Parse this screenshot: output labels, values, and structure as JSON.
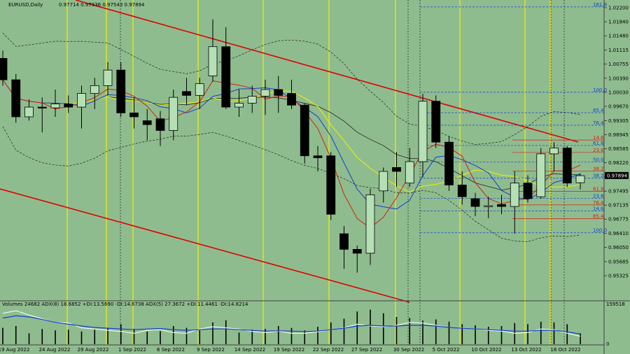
{
  "header": {
    "symbol": "EURUSD,Daily",
    "ohlc": "0.97714 0.97936 0.97543 0.97894"
  },
  "indicator": {
    "title": "Volumes 24682 ADX(8) 18.6852 +DI:13.5690 -DI:14.6738 ADX(5) 27.3672 +DI:11.4461 -DI:14.8214",
    "max_label": "159518",
    "min_label": "0"
  },
  "colors": {
    "bg": "#8fbc8f",
    "up": "#b5e0b5",
    "down": "#000000",
    "channel": "#e00000",
    "vline": "#f0f000",
    "blue": "#1040d0",
    "red": "#d02010"
  },
  "chart_data": {
    "type": "candlestick",
    "price_ticks": [
      "1.02200",
      "1.01840",
      "1.01480",
      "1.01115",
      "1.00755",
      "1.00390",
      "1.00030",
      "0.99670",
      "0.99305",
      "0.98945",
      "0.98585",
      "0.98220",
      "0.97860",
      "0.97495",
      "0.97135",
      "0.96775",
      "0.96410",
      "0.96050",
      "0.95685",
      "0.95325"
    ],
    "current_price": "0.97894",
    "date_labels": [
      "19 Aug 2022",
      "24 Aug 2022",
      "29 Aug 2022",
      "1 Sep 2022",
      "6 Sep 2022",
      "9 Sep 2022",
      "14 Sep 2022",
      "19 Sep 2022",
      "22 Sep 2022",
      "27 Sep 2022",
      "30 Sep 2022",
      "5 Oct 2022",
      "10 Oct 2022",
      "13 Oct 2022",
      "18 Oct 2022"
    ],
    "candles": [
      {
        "o": 1.009,
        "h": 1.011,
        "l": 1.002,
        "c": 1.0035
      },
      {
        "o": 1.0035,
        "h": 1.005,
        "l": 0.9925,
        "c": 0.994
      },
      {
        "o": 0.994,
        "h": 0.9985,
        "l": 0.993,
        "c": 0.9965
      },
      {
        "o": 0.9965,
        "h": 0.999,
        "l": 0.99,
        "c": 0.9963
      },
      {
        "o": 0.9963,
        "h": 1.001,
        "l": 0.994,
        "c": 0.9973
      },
      {
        "o": 0.9973,
        "h": 0.9995,
        "l": 0.995,
        "c": 0.9965
      },
      {
        "o": 0.9965,
        "h": 1.002,
        "l": 0.991,
        "c": 1.0
      },
      {
        "o": 1.0,
        "h": 1.004,
        "l": 0.996,
        "c": 1.002
      },
      {
        "o": 1.002,
        "h": 1.008,
        "l": 0.9995,
        "c": 1.006
      },
      {
        "o": 1.006,
        "h": 1.008,
        "l": 0.994,
        "c": 0.995
      },
      {
        "o": 0.995,
        "h": 0.999,
        "l": 0.991,
        "c": 0.994
      },
      {
        "o": 0.993,
        "h": 0.996,
        "l": 0.988,
        "c": 0.992
      },
      {
        "o": 0.9935,
        "h": 0.9955,
        "l": 0.9865,
        "c": 0.9905
      },
      {
        "o": 0.9905,
        "h": 1.001,
        "l": 0.988,
        "c": 0.999
      },
      {
        "o": 1.0005,
        "h": 1.004,
        "l": 0.997,
        "c": 0.9995
      },
      {
        "o": 0.9995,
        "h": 1.004,
        "l": 0.996,
        "c": 1.0025
      },
      {
        "o": 1.0045,
        "h": 1.019,
        "l": 1.003,
        "c": 1.012
      },
      {
        "o": 1.012,
        "h": 1.017,
        "l": 0.996,
        "c": 0.9965
      },
      {
        "o": 0.9965,
        "h": 1.001,
        "l": 0.994,
        "c": 0.9975
      },
      {
        "o": 0.9975,
        "h": 1.002,
        "l": 0.995,
        "c": 0.9993
      },
      {
        "o": 0.9993,
        "h": 1.0035,
        "l": 0.9945,
        "c": 1.001
      },
      {
        "o": 1.001,
        "h": 1.0045,
        "l": 0.995,
        "c": 0.9995
      },
      {
        "o": 1.0,
        "h": 1.0035,
        "l": 0.996,
        "c": 0.997
      },
      {
        "o": 0.997,
        "h": 0.9975,
        "l": 0.982,
        "c": 0.984
      },
      {
        "o": 0.984,
        "h": 0.9865,
        "l": 0.98,
        "c": 0.9835
      },
      {
        "o": 0.984,
        "h": 0.985,
        "l": 0.9675,
        "c": 0.969
      },
      {
        "o": 0.964,
        "h": 0.966,
        "l": 0.955,
        "c": 0.96
      },
      {
        "o": 0.96,
        "h": 0.961,
        "l": 0.954,
        "c": 0.959
      },
      {
        "o": 0.959,
        "h": 0.9755,
        "l": 0.956,
        "c": 0.974
      },
      {
        "o": 0.975,
        "h": 0.981,
        "l": 0.972,
        "c": 0.98
      },
      {
        "o": 0.981,
        "h": 0.985,
        "l": 0.976,
        "c": 0.98
      },
      {
        "o": 0.977,
        "h": 0.986,
        "l": 0.976,
        "c": 0.9825
      },
      {
        "o": 0.9825,
        "h": 0.9999,
        "l": 0.9785,
        "c": 0.998
      },
      {
        "o": 0.998,
        "h": 0.9995,
        "l": 0.986,
        "c": 0.9875
      },
      {
        "o": 0.9875,
        "h": 0.989,
        "l": 0.975,
        "c": 0.9765
      },
      {
        "o": 0.9765,
        "h": 0.98,
        "l": 0.9715,
        "c": 0.9735
      },
      {
        "o": 0.973,
        "h": 0.9745,
        "l": 0.9685,
        "c": 0.971
      },
      {
        "o": 0.971,
        "h": 0.9735,
        "l": 0.968,
        "c": 0.9712
      },
      {
        "o": 0.9715,
        "h": 0.974,
        "l": 0.969,
        "c": 0.971
      },
      {
        "o": 0.971,
        "h": 0.98,
        "l": 0.964,
        "c": 0.977
      },
      {
        "o": 0.977,
        "h": 0.979,
        "l": 0.972,
        "c": 0.973
      },
      {
        "o": 0.9735,
        "h": 0.986,
        "l": 0.973,
        "c": 0.9845
      },
      {
        "o": 0.9845,
        "h": 0.9875,
        "l": 0.98,
        "c": 0.986
      },
      {
        "o": 0.986,
        "h": 0.9865,
        "l": 0.976,
        "c": 0.977
      },
      {
        "o": 0.9771,
        "h": 0.9794,
        "l": 0.9754,
        "c": 0.9789
      }
    ],
    "fib_blue": [
      {
        "label": "161.8",
        "price": 1.0222
      },
      {
        "label": "100.0",
        "price": 1.0003
      },
      {
        "label": "85.4",
        "price": 0.99505
      },
      {
        "label": "76.4",
        "price": 0.99185
      },
      {
        "label": "61.8",
        "price": 0.98665
      },
      {
        "label": "50.0",
        "price": 0.98245
      },
      {
        "label": "38.2",
        "price": 0.97825
      },
      {
        "label": "23.6",
        "price": 0.97305
      },
      {
        "label": "14.6",
        "price": 0.96985
      },
      {
        "label": "100.0",
        "price": 0.96425
      }
    ],
    "fib_red": [
      {
        "label": "14.6",
        "price": 0.98805
      },
      {
        "label": "23.6",
        "price": 0.98485
      },
      {
        "label": "38.2",
        "price": 0.9801
      },
      {
        "label": "61.8",
        "price": 0.9749
      },
      {
        "label": "76.4",
        "price": 0.9714
      },
      {
        "label": "85.4",
        "price": 0.9679
      }
    ],
    "volumes": [
      0.45,
      0.5,
      0.3,
      0.42,
      0.38,
      0.4,
      0.35,
      0.4,
      0.45,
      0.55,
      0.42,
      0.35,
      0.36,
      0.5,
      0.45,
      0.38,
      0.6,
      0.66,
      0.32,
      0.4,
      0.42,
      0.5,
      0.45,
      0.38,
      0.48,
      0.6,
      0.7,
      0.9,
      0.95,
      0.85,
      0.75,
      0.72,
      0.65,
      0.68,
      0.62,
      0.55,
      0.52,
      0.48,
      0.5,
      0.58,
      0.55,
      0.62,
      0.6,
      0.55,
      0.3
    ],
    "adx_white": [
      0.85,
      0.92,
      0.8,
      0.7,
      0.6,
      0.58,
      0.45,
      0.42,
      0.38,
      0.35,
      0.3,
      0.38,
      0.4,
      0.32,
      0.3,
      0.42,
      0.48,
      0.45,
      0.42,
      0.35,
      0.32,
      0.36,
      0.3,
      0.3,
      0.34,
      0.4,
      0.45,
      0.55,
      0.5,
      0.48,
      0.52,
      0.6,
      0.58,
      0.52,
      0.46,
      0.45,
      0.42,
      0.38,
      0.36,
      0.3,
      0.32,
      0.42,
      0.4,
      0.3,
      0.22
    ],
    "adx_blue": [
      0.72,
      0.78,
      0.75,
      0.68,
      0.6,
      0.55,
      0.5,
      0.46,
      0.44,
      0.42,
      0.4,
      0.42,
      0.43,
      0.4,
      0.38,
      0.4,
      0.42,
      0.42,
      0.4,
      0.38,
      0.36,
      0.37,
      0.36,
      0.35,
      0.36,
      0.4,
      0.44,
      0.5,
      0.52,
      0.5,
      0.5,
      0.52,
      0.52,
      0.5,
      0.46,
      0.44,
      0.42,
      0.4,
      0.38,
      0.36,
      0.36,
      0.38,
      0.38,
      0.34,
      0.28
    ]
  }
}
